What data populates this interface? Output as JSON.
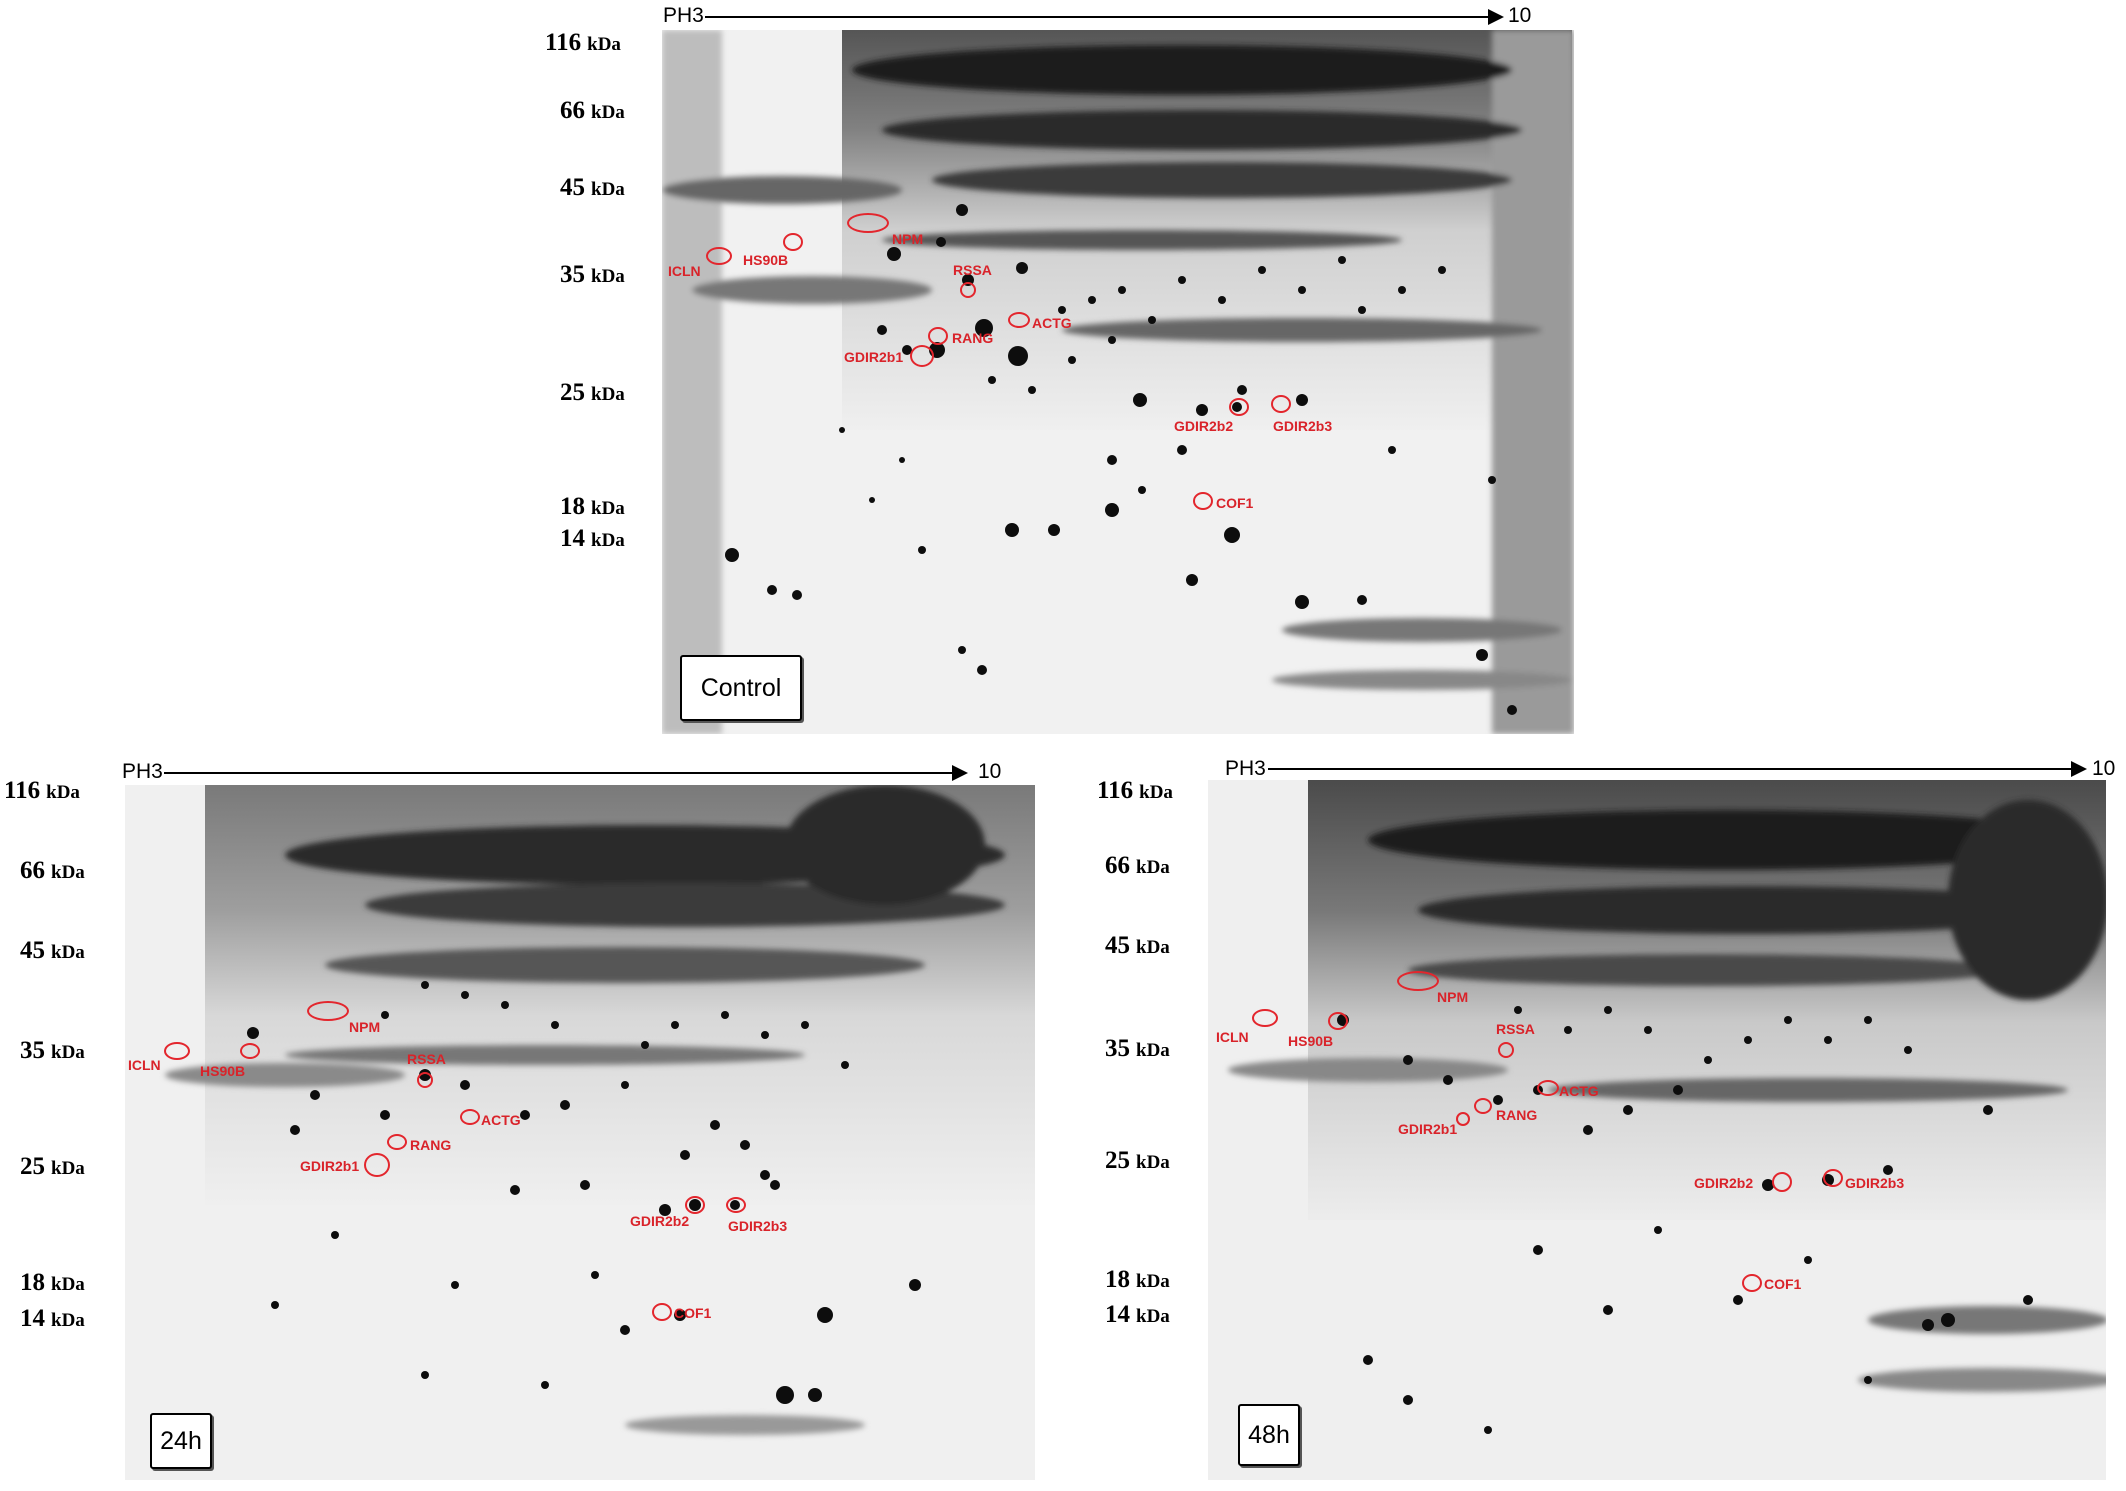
{
  "ph_scale": {
    "start": "PH3",
    "end": "10"
  },
  "mw_markers": [
    {
      "value": "116",
      "unit": "kDa"
    },
    {
      "value": "66",
      "unit": "kDa"
    },
    {
      "value": "45",
      "unit": "kDa"
    },
    {
      "value": "35",
      "unit": "kDa"
    },
    {
      "value": "25",
      "unit": "kDa"
    },
    {
      "value": "18",
      "unit": "kDa"
    },
    {
      "value": "14",
      "unit": "kDa"
    }
  ],
  "panels": [
    {
      "condition": "Control"
    },
    {
      "condition": "24h"
    },
    {
      "condition": "48h"
    }
  ],
  "spot_labels": {
    "ICLN": "ICLN",
    "HS90B": "HS90B",
    "NPM": "NPM",
    "RSSA": "RSSA",
    "ACTG": "ACTG",
    "RANG": "RANG",
    "GDIR2b1": "GDIR2b1",
    "GDIR2b2": "GDIR2b2",
    "GDIR2b3": "GDIR2b3",
    "COF1": "COF1"
  },
  "colors": {
    "annotation": "#e3262d",
    "gel_background": "#f4f4f4",
    "spot": "#111111"
  }
}
